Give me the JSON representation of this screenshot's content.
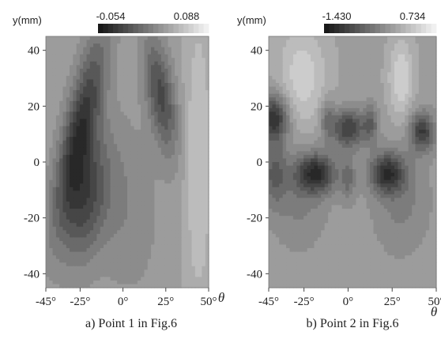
{
  "chart_data": [
    {
      "type": "heatmap",
      "caption": "a) Point 1 in Fig.6",
      "ylabel": "y(mm)",
      "xlabel": "θ",
      "colorbar": {
        "min_label": "-0.054",
        "max_label": "0.088",
        "min": -0.054,
        "max": 0.088
      },
      "xlim": [
        -45,
        50
      ],
      "ylim": [
        -45,
        45
      ],
      "x_ticks": [
        {
          "value": -45,
          "label": "-45°"
        },
        {
          "value": -25,
          "label": "-25°"
        },
        {
          "value": 0,
          "label": "0°"
        },
        {
          "value": 25,
          "label": "25°"
        },
        {
          "value": 50,
          "label": "50°"
        }
      ],
      "y_ticks": [
        {
          "value": 40,
          "label": "40"
        },
        {
          "value": 20,
          "label": "20"
        },
        {
          "value": 0,
          "label": "0"
        },
        {
          "value": -20,
          "label": "-20"
        },
        {
          "value": -40,
          "label": "-40"
        }
      ],
      "features": [
        {
          "x": -25,
          "y": 12,
          "sx": 7,
          "sy": 24,
          "amp": -0.9,
          "tilt": 0.35
        },
        {
          "x": -22,
          "y": -14,
          "sx": 9,
          "sy": 16,
          "amp": -0.7,
          "tilt": 0.2
        },
        {
          "x": 22,
          "y": 24,
          "sx": 6,
          "sy": 15,
          "amp": -0.75,
          "tilt": -0.25
        },
        {
          "x": 0,
          "y": -15,
          "sx": 14,
          "sy": 22,
          "amp": -0.25,
          "tilt": -0.1
        },
        {
          "x": 44,
          "y": 0,
          "sx": 6,
          "sy": 40,
          "amp": 0.35,
          "tilt": 0
        }
      ]
    },
    {
      "type": "heatmap",
      "caption": "b) Point 2 in Fig.6",
      "ylabel": "y(mm)",
      "xlabel": "θ",
      "colorbar": {
        "min_label": "-1.430",
        "max_label": "0.734",
        "min": -1.43,
        "max": 0.734
      },
      "xlim": [
        -45,
        50
      ],
      "ylim": [
        -45,
        45
      ],
      "x_ticks": [
        {
          "value": -45,
          "label": "-45°"
        },
        {
          "value": -25,
          "label": "-25°"
        },
        {
          "value": 0,
          "label": "0°"
        },
        {
          "value": 25,
          "label": "25°"
        },
        {
          "value": 50,
          "label": "50°"
        }
      ],
      "y_ticks": [
        {
          "value": 40,
          "label": "40"
        },
        {
          "value": 20,
          "label": "20"
        },
        {
          "value": 0,
          "label": "0"
        },
        {
          "value": -20,
          "label": "-20"
        },
        {
          "value": -40,
          "label": "-40"
        }
      ],
      "features": [
        {
          "x": -42,
          "y": 16,
          "sx": 6,
          "sy": 6,
          "amp": -1.0,
          "tilt": 0
        },
        {
          "x": 0,
          "y": 12,
          "sx": 7,
          "sy": 5,
          "amp": -0.85,
          "tilt": 0
        },
        {
          "x": 42,
          "y": 11,
          "sx": 5,
          "sy": 5,
          "amp": -0.85,
          "tilt": 0
        },
        {
          "x": -18,
          "y": -4,
          "sx": 8,
          "sy": 5,
          "amp": -0.95,
          "tilt": 0
        },
        {
          "x": 22,
          "y": -4,
          "sx": 7,
          "sy": 5,
          "amp": -0.9,
          "tilt": 0
        },
        {
          "x": -42,
          "y": -4,
          "sx": 5,
          "sy": 8,
          "amp": -0.5,
          "tilt": 0
        },
        {
          "x": -12,
          "y": 16,
          "sx": 3,
          "sy": 5,
          "amp": -0.4,
          "tilt": 0
        },
        {
          "x": 13,
          "y": 14,
          "sx": 3,
          "sy": 5,
          "amp": -0.45,
          "tilt": 0
        },
        {
          "x": 0,
          "y": -6,
          "sx": 3,
          "sy": 6,
          "amp": -0.4,
          "tilt": 0
        },
        {
          "x": -26,
          "y": 30,
          "sx": 10,
          "sy": 14,
          "amp": 0.45,
          "tilt": 0
        },
        {
          "x": 30,
          "y": 30,
          "sx": 5,
          "sy": 10,
          "amp": 0.5,
          "tilt": 0
        },
        {
          "x": -28,
          "y": -12,
          "sx": 12,
          "sy": 14,
          "amp": -0.3,
          "tilt": 0
        },
        {
          "x": 30,
          "y": -14,
          "sx": 12,
          "sy": 14,
          "amp": -0.3,
          "tilt": 0
        }
      ]
    }
  ]
}
